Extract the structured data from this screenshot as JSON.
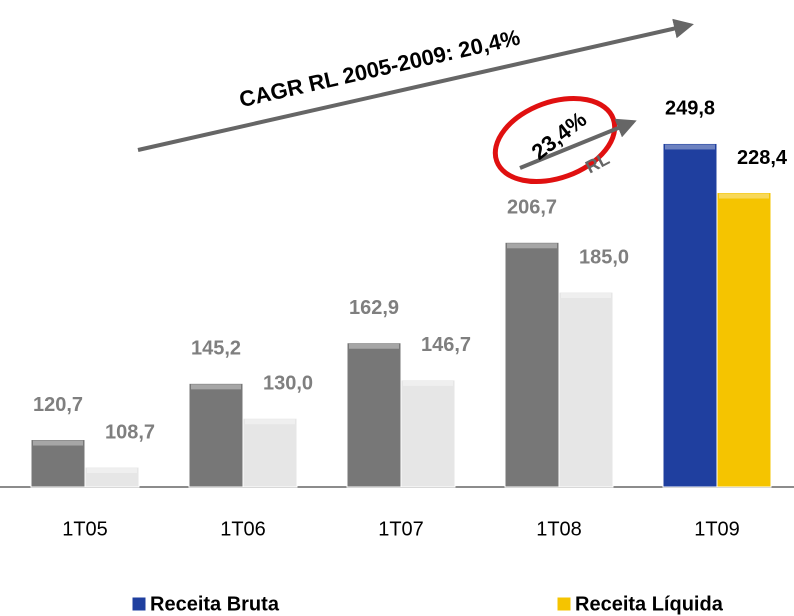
{
  "chart_data": {
    "type": "bar",
    "categories": [
      "1T05",
      "1T06",
      "1T07",
      "1T08",
      "1T09"
    ],
    "series": [
      {
        "name": "Receita Bruta",
        "color": "#1f3f9f",
        "point_colors": [
          "#777777",
          "#777777",
          "#777777",
          "#777777",
          "#1f3f9f"
        ],
        "values": [
          120.7,
          145.2,
          162.9,
          206.7,
          249.8
        ],
        "value_labels": [
          "120,7",
          "145,2",
          "162,9",
          "206,7",
          "249,8"
        ]
      },
      {
        "name": "Receita Líquida",
        "color": "#f5c400",
        "point_colors": [
          "#e6e6e6",
          "#e6e6e6",
          "#e6e6e6",
          "#e6e6e6",
          "#f5c400"
        ],
        "values": [
          108.7,
          130.0,
          146.7,
          185.0,
          228.4
        ],
        "value_labels": [
          "108,7",
          "130,0",
          "146,7",
          "185,0",
          "228,4"
        ]
      }
    ],
    "ylim": [
      100,
      250
    ],
    "annotations": [
      "CAGR RL 2005-2009: 20,4%",
      "23,4%",
      "RL"
    ],
    "legend": "bottom"
  }
}
